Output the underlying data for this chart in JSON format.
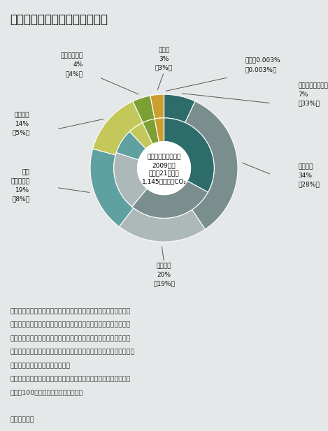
{
  "title": "二酸化炭素排出量の部門別内訳",
  "center_text_line1": "二酸化炭素総排出量",
  "center_text_line2": "2009年度",
  "center_text_line3": "（平成21年度）",
  "center_text_line4": "1,145百万トンCO₂",
  "note1_line1": "注１：内側の円は各部門の直接の排出量の割合（下段カッコ内の数",
  "note1_line2": "　　　字）を、また、外側の円は電気事業者の発電に伴う排出量及",
  "note1_line3": "　　　び熱供給事業者の熱発生に伴う排出量を電力消費量及び熱消",
  "note1_line4": "　　　費量に応じて最終需要部門に配分した後の割合（上段の数字）",
  "note1_line5": "　　　を、それぞれ示している。",
  "note2_line1": "　２：統計誤差、四捨五入等のため、排出量割合の合計は必ずしも",
  "note2_line2": "　　　100％にならないことがある。",
  "source": "資料：環境省",
  "outer_values": [
    7,
    34,
    20,
    19,
    14,
    4,
    3,
    0.003
  ],
  "inner_values": [
    33,
    28,
    19,
    8,
    5,
    4,
    3,
    0.003
  ],
  "outer_colors": [
    "#2e6b6b",
    "#7a8e8e",
    "#adb8b8",
    "#5fa0a0",
    "#c4c85a",
    "#7da035",
    "#cc9e30",
    "#d8d8d8"
  ],
  "inner_colors": [
    "#2e6b6b",
    "#7a8e8e",
    "#adb8b8",
    "#5fa0a0",
    "#c4c85a",
    "#7da035",
    "#cc9e30",
    "#d8d8d8"
  ],
  "background_color": "#e5e8e8"
}
